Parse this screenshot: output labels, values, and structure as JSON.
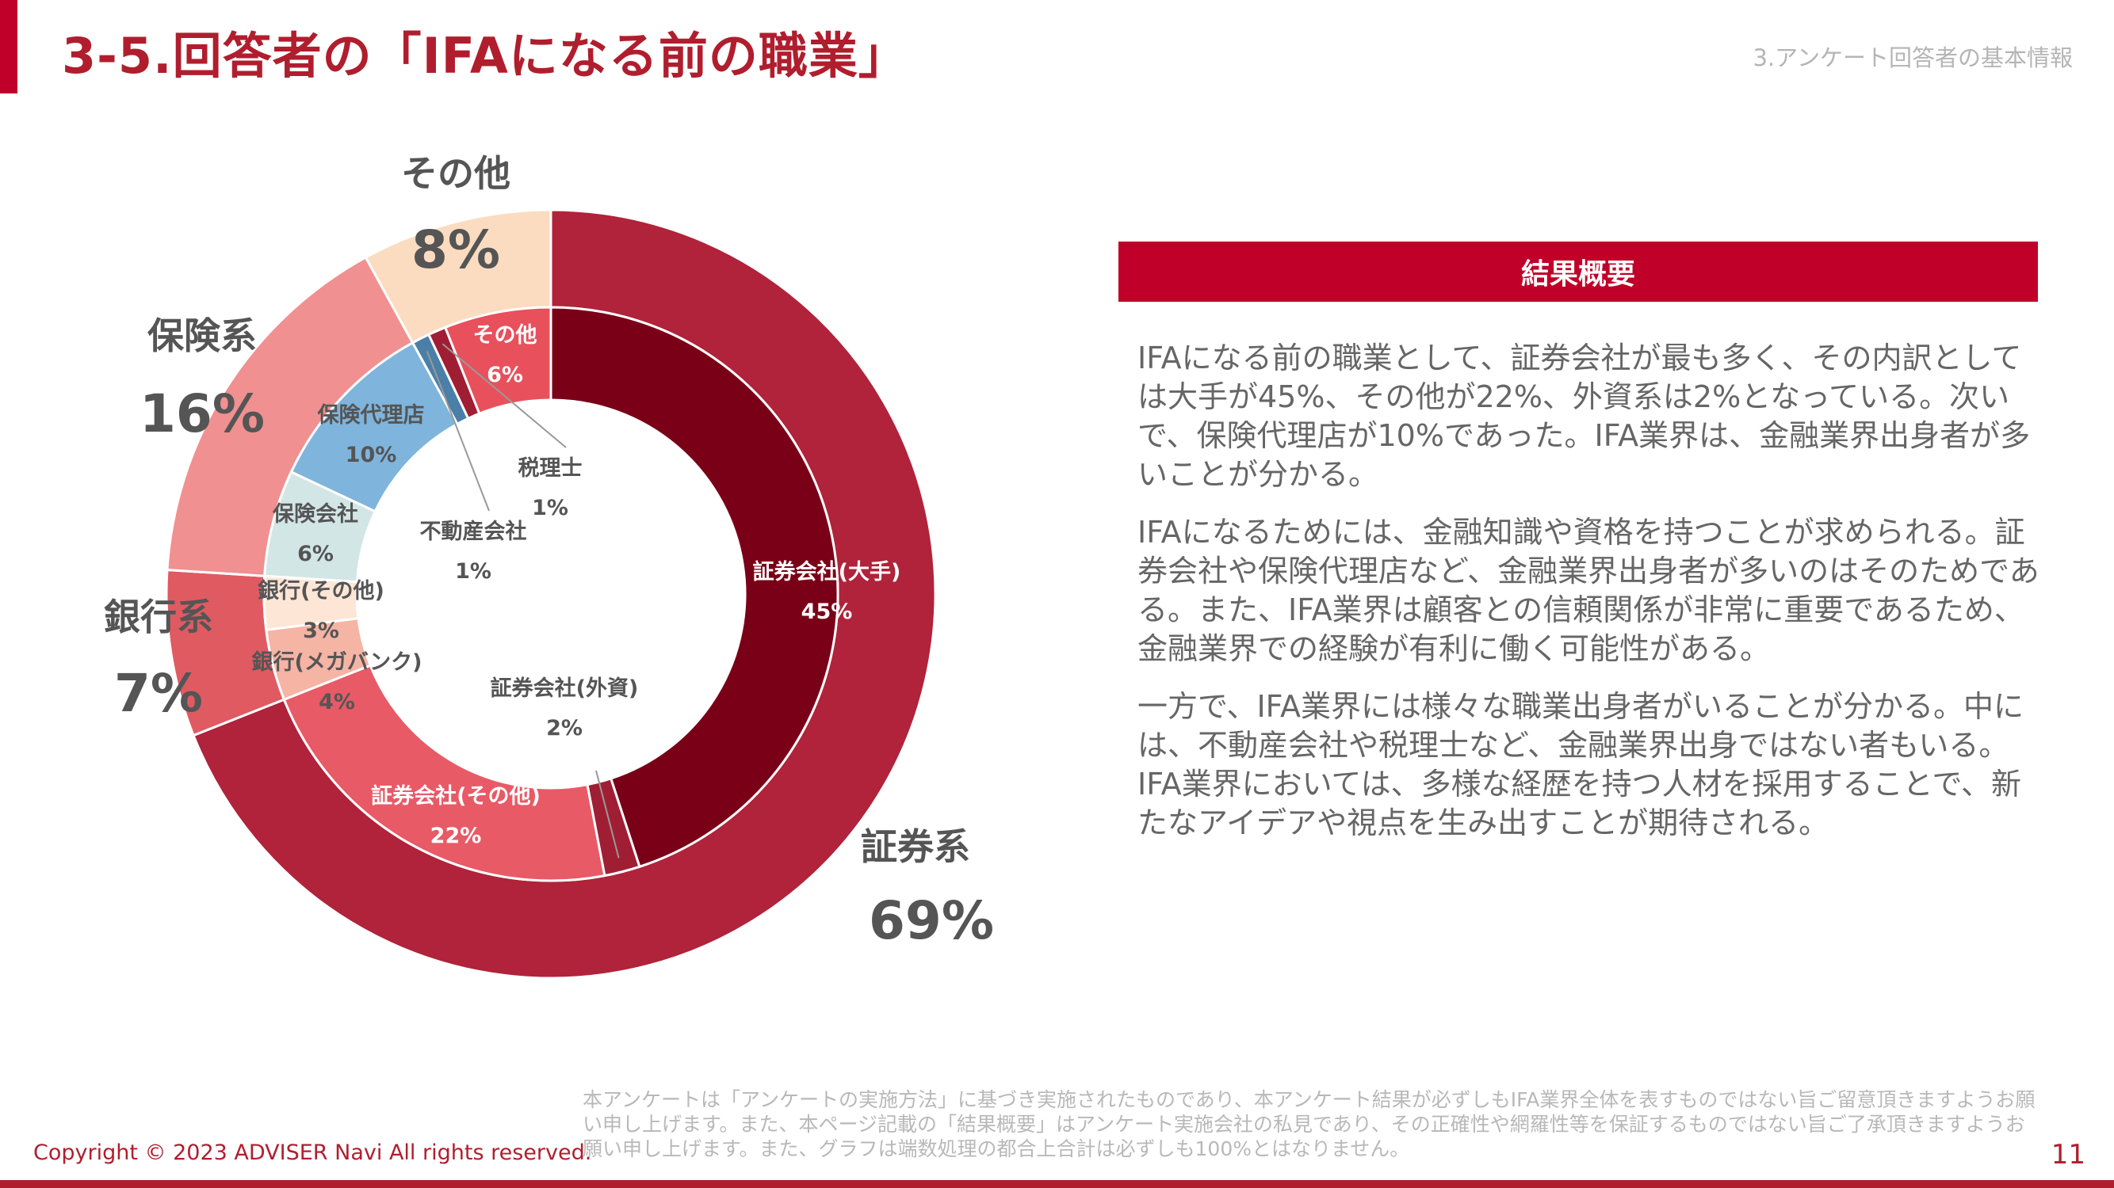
{
  "header": {
    "title": "3-5.回答者の「IFAになる前の職業」",
    "section": "3.アンケート回答者の基本情報"
  },
  "chart_data": {
    "type": "pie",
    "outer_ring": [
      {
        "label": "証券系",
        "value": 69,
        "display": "69%",
        "color": "#b0233a"
      },
      {
        "label": "銀行系",
        "value": 7,
        "display": "7%",
        "color": "#e05a62"
      },
      {
        "label": "保険系",
        "value": 16,
        "display": "16%",
        "color": "#f09090"
      },
      {
        "label": "その他",
        "value": 8,
        "display": "8%",
        "color": "#fbdcc0"
      }
    ],
    "inner_ring": [
      {
        "label": "証券会社(大手)",
        "value": 45,
        "display": "45%",
        "color": "#7a0018"
      },
      {
        "label": "証券会社(外資)",
        "value": 2,
        "display": "2%",
        "color": "#a01e33"
      },
      {
        "label": "証券会社(その他)",
        "value": 22,
        "display": "22%",
        "color": "#e85a66"
      },
      {
        "label": "銀行(メガバンク)",
        "value": 4,
        "display": "4%",
        "color": "#f5b4a4"
      },
      {
        "label": "銀行(その他)",
        "value": 3,
        "display": "3%",
        "color": "#fde6d6"
      },
      {
        "label": "保険会社",
        "value": 6,
        "display": "6%",
        "color": "#d3e6e6"
      },
      {
        "label": "保険代理店",
        "value": 10,
        "display": "10%",
        "color": "#7fb4dc"
      },
      {
        "label": "不動産会社",
        "value": 1,
        "display": "1%",
        "color": "#4a7fa8"
      },
      {
        "label": "税理士",
        "value": 1,
        "display": "1%",
        "color": "#a01e33"
      },
      {
        "label": "その他",
        "value": 6,
        "display": "6%",
        "color": "#e8505c"
      }
    ]
  },
  "summary": {
    "header": "結果概要",
    "paragraphs": [
      "IFAになる前の職業として、証券会社が最も多く、その内訳としては大手が45%、その他が22%、外資系は2%となっている。次いで、保険代理店が10%であった。IFA業界は、金融業界出身者が多いことが分かる。",
      "IFAになるためには、金融知識や資格を持つことが求められる。証券会社や保険代理店など、金融業界出身者が多いのはそのためである。また、IFA業界は顧客との信頼関係が非常に重要であるため、金融業界での経験が有利に働く可能性がある。",
      "一方で、IFA業界には様々な職業出身者がいることが分かる。中には、不動産会社や税理士など、金融業界出身ではない者もいる。IFA業界においては、多様な経歴を持つ人材を採用することで、新たなアイデアや視点を生み出すことが期待される。"
    ]
  },
  "footer": {
    "copyright": "Copyright © 2023 ADVISER Navi All rights reserved.",
    "disclaimer": "本アンケートは「アンケートの実施方法」に基づき実施されたものであり、本アンケート結果が必ずしもIFA業界全体を表すものではない旨ご留意頂きますようお願い申し上げます。また、本ページ記載の「結果概要」はアンケート実施会社の私見であり、その正確性や網羅性等を保証するものではない旨ご了承頂きますようお願い申し上げます。また、グラフは端数処理の都合上合計は必ずしも100%とはなりません。",
    "page_number": "11"
  }
}
